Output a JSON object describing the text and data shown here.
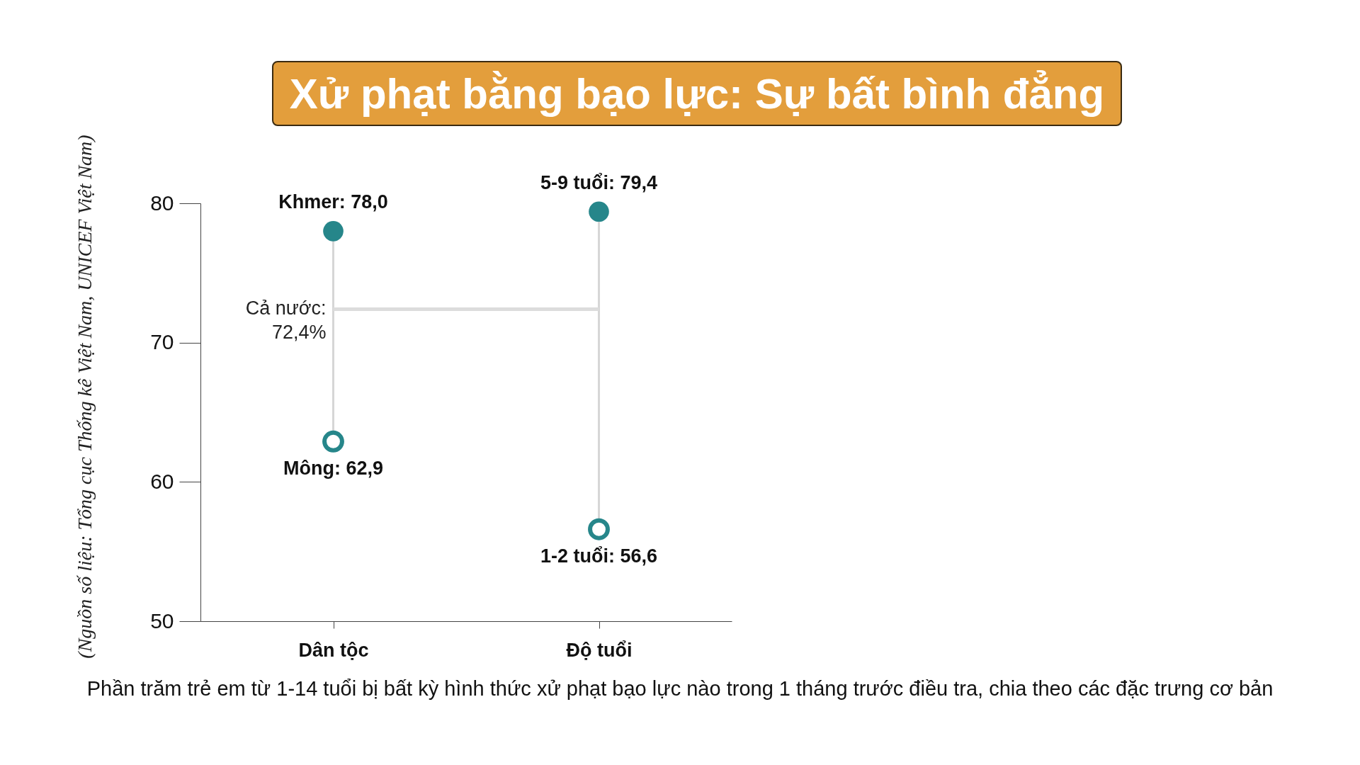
{
  "chart_data": {
    "type": "scatter",
    "title": "Xử phạt bằng bạo lực: Sự bất bình đẳng",
    "categories": [
      "Dân tộc",
      "Độ tuổi"
    ],
    "series": [
      {
        "color": "#26868a",
        "values": [
          78.0,
          79.4
        ],
        "value_labels": [
          "Khmer: 78,0",
          "5-9 tuổi: 79,4"
        ]
      },
      {
        "color": "#26868a",
        "values": [
          62.9,
          56.6
        ],
        "value_labels": [
          "Mông: 62,9",
          "1-2 tuổi: 56,6"
        ]
      }
    ],
    "ylim": [
      50,
      80
    ],
    "yticks": [
      50,
      60,
      70,
      80
    ],
    "marker": "circle",
    "ref_lines": [
      {
        "axis": "y",
        "value": 72.4,
        "label": "Cả nước:\n72,4%",
        "color": "#dcdcdc"
      }
    ],
    "annotations": [
      "Phần trăm trẻ em từ 1-14 tuổi bị bất kỳ hình thức xử phạt bạo lực nào trong 1 tháng trước điều tra, chia theo các đặc trưng cơ bản",
      "(Nguồn số liệu: Tổng cục Thống kê Việt Nam, UNICEF Việt Nam)"
    ]
  }
}
